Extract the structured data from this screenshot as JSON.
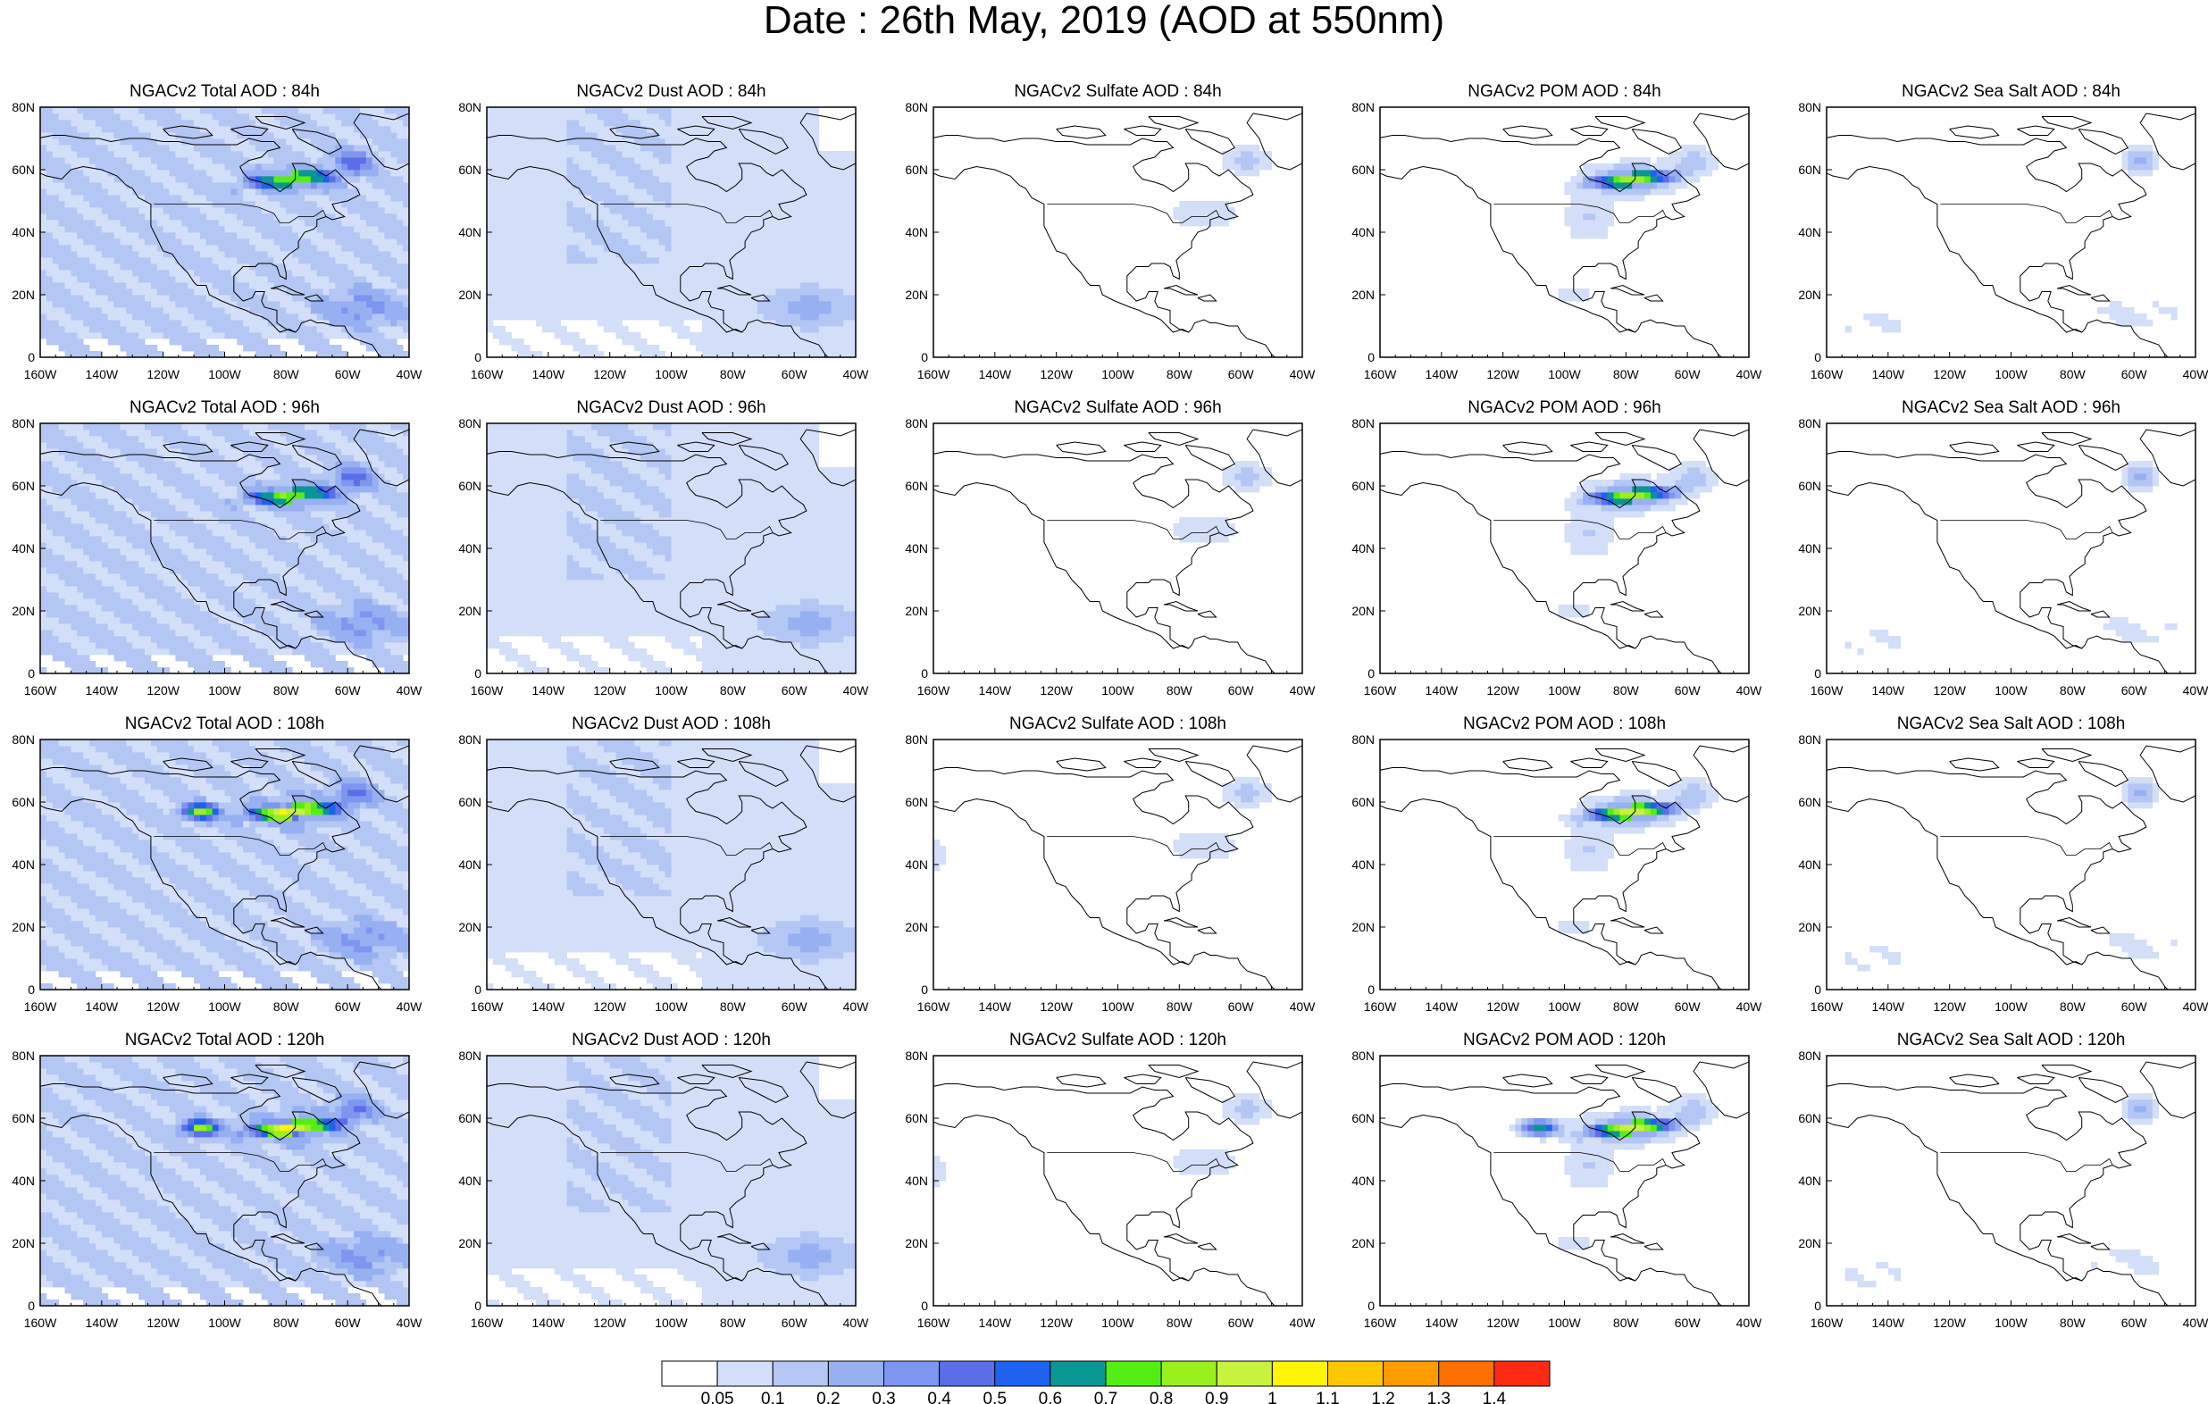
{
  "title": "Date : 26th May, 2019 (AOD at 550nm)",
  "rows": [
    {
      "panels": [
        {
          "title": "NGACv2 Total AOD : 84h",
          "product": "total"
        },
        {
          "title": "NGACv2 Dust AOD : 84h",
          "product": "dust"
        },
        {
          "title": "NGACv2 Sulfate AOD : 84h",
          "product": "sulfate"
        },
        {
          "title": "NGACv2 POM AOD : 84h",
          "product": "pom"
        },
        {
          "title": "NGACv2 Sea Salt AOD : 84h",
          "product": "seasalt"
        }
      ]
    },
    {
      "panels": [
        {
          "title": "NGACv2 Total AOD : 96h",
          "product": "total"
        },
        {
          "title": "NGACv2 Dust AOD : 96h",
          "product": "dust"
        },
        {
          "title": "NGACv2 Sulfate AOD : 96h",
          "product": "sulfate"
        },
        {
          "title": "NGACv2 POM AOD : 96h",
          "product": "pom"
        },
        {
          "title": "NGACv2 Sea Salt AOD : 96h",
          "product": "seasalt"
        }
      ]
    },
    {
      "panels": [
        {
          "title": "NGACv2 Total AOD : 108h",
          "product": "total"
        },
        {
          "title": "NGACv2 Dust AOD : 108h",
          "product": "dust"
        },
        {
          "title": "NGACv2 Sulfate AOD : 108h",
          "product": "sulfate"
        },
        {
          "title": "NGACv2 POM AOD : 108h",
          "product": "pom"
        },
        {
          "title": "NGACv2 Sea Salt AOD : 108h",
          "product": "seasalt"
        }
      ]
    },
    {
      "panels": [
        {
          "title": "NGACv2 Total AOD : 120h",
          "product": "total"
        },
        {
          "title": "NGACv2 Dust AOD : 120h",
          "product": "dust"
        },
        {
          "title": "NGACv2 Sulfate AOD : 120h",
          "product": "sulfate"
        },
        {
          "title": "NGACv2 POM AOD : 120h",
          "product": "pom"
        },
        {
          "title": "NGACv2 Sea Salt  AOD : 120h",
          "product": "seasalt"
        }
      ]
    }
  ],
  "x_ticks": [
    "160W",
    "140W",
    "120W",
    "100W",
    "80W",
    "60W",
    "40W"
  ],
  "y_ticks": [
    "0",
    "20N",
    "40N",
    "60N",
    "80N"
  ],
  "lon_range": [
    -160,
    -40
  ],
  "lat_range": [
    0,
    80
  ],
  "colorbar": {
    "labels": [
      "0.05",
      "0.1",
      "0.2",
      "0.3",
      "0.4",
      "0.5",
      "0.6",
      "0.7",
      "0.8",
      "0.9",
      "1",
      "1.1",
      "1.2",
      "1.3",
      "1.4"
    ],
    "colors": [
      "#ffffff",
      "#d3def8",
      "#b4c6f4",
      "#97b0f2",
      "#7f96f0",
      "#5c6ee8",
      "#1f62ef",
      "#0b9696",
      "#55ee13",
      "#99f01d",
      "#c7f23e",
      "#fff505",
      "#ffc700",
      "#ff9c00",
      "#ff7000",
      "#ff2a14"
    ]
  }
}
